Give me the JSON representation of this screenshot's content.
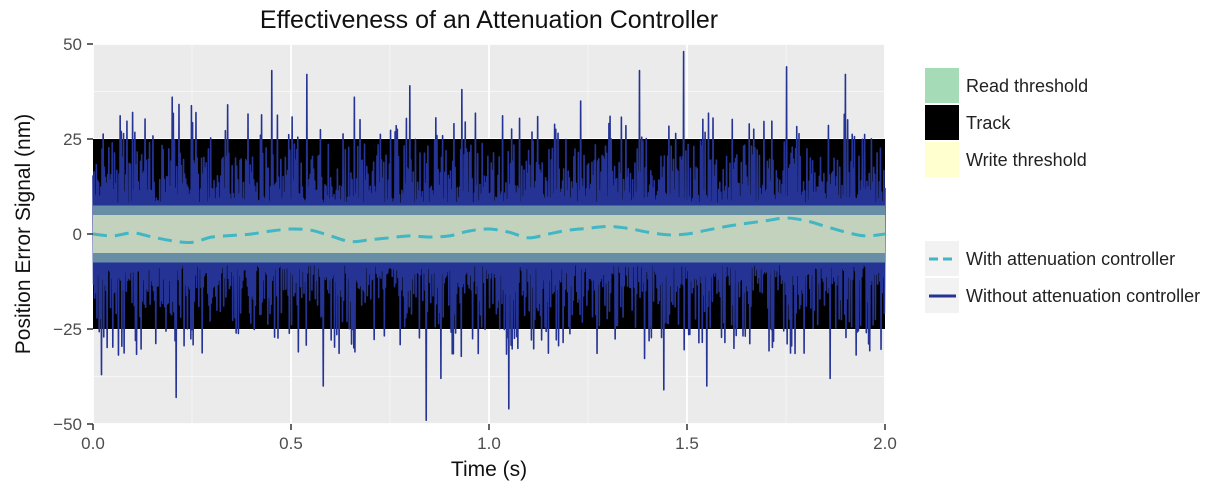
{
  "chart_data": {
    "type": "line",
    "title": "Effectiveness of an Attenuation Controller",
    "xlabel": "Time (s)",
    "ylabel": "Position Error Signal (nm)",
    "xlim": [
      0,
      2
    ],
    "ylim": [
      -50,
      50
    ],
    "x_ticks": [
      "0.0",
      "0.5",
      "1.0",
      "1.5",
      "2.0"
    ],
    "y_ticks": [
      "50",
      "25",
      "0",
      "-25",
      "-50"
    ],
    "grid": true,
    "legend_position": "right",
    "bands": [
      {
        "name": "Track",
        "ymin": -25,
        "ymax": 25,
        "color": "#000000"
      },
      {
        "name": "Read threshold",
        "ymin": -7.5,
        "ymax": 7.5,
        "color": "#a1d9b4"
      },
      {
        "name": "Write threshold",
        "ymin": -5,
        "ymax": 5,
        "color": "#ffffcc"
      }
    ],
    "fill_legend": [
      {
        "name": "Read threshold",
        "color": "#a1d9b4"
      },
      {
        "name": "Track",
        "color": "#000000"
      },
      {
        "name": "Write threshold",
        "color": "#ffffcc"
      }
    ],
    "line_legend": [
      {
        "name": "With attenuation controller",
        "color": "#41b6c4",
        "dash": true
      },
      {
        "name": "Without attenuation controller",
        "color": "#253494",
        "dash": false
      }
    ],
    "series": [
      {
        "name": "With attenuation controller",
        "color": "#41b6c4",
        "style": "dashed",
        "x": [
          0.0,
          0.05,
          0.1,
          0.15,
          0.2,
          0.25,
          0.3,
          0.35,
          0.4,
          0.45,
          0.5,
          0.55,
          0.6,
          0.65,
          0.7,
          0.75,
          0.8,
          0.85,
          0.9,
          0.95,
          1.0,
          1.05,
          1.1,
          1.15,
          1.2,
          1.25,
          1.3,
          1.35,
          1.4,
          1.45,
          1.5,
          1.55,
          1.6,
          1.65,
          1.7,
          1.75,
          1.8,
          1.85,
          1.9,
          1.95,
          2.0
        ],
        "y": [
          0.0,
          -0.5,
          0.3,
          -0.8,
          -1.8,
          -2.2,
          -0.8,
          -0.4,
          0.0,
          0.8,
          1.3,
          1.0,
          -0.5,
          -2.0,
          -1.5,
          -1.0,
          -0.5,
          -0.8,
          -0.5,
          0.8,
          1.3,
          0.5,
          -1.0,
          0.0,
          1.0,
          1.5,
          2.0,
          1.5,
          0.5,
          -0.2,
          0.0,
          1.0,
          2.0,
          2.8,
          3.5,
          4.2,
          3.5,
          2.0,
          0.5,
          -0.5,
          0.0
        ]
      },
      {
        "name": "Without attenuation controller",
        "color": "#253494",
        "style": "solid",
        "peaks": [
          {
            "x": 0.02,
            "y": -37
          },
          {
            "x": 0.07,
            "y": 27
          },
          {
            "x": 0.1,
            "y": 32
          },
          {
            "x": 0.21,
            "y": -43
          },
          {
            "x": 0.2,
            "y": 36
          },
          {
            "x": 0.34,
            "y": 34
          },
          {
            "x": 0.45,
            "y": 43
          },
          {
            "x": 0.54,
            "y": 42
          },
          {
            "x": 0.58,
            "y": -40
          },
          {
            "x": 0.66,
            "y": 36
          },
          {
            "x": 0.8,
            "y": 39
          },
          {
            "x": 0.84,
            "y": -49
          },
          {
            "x": 0.93,
            "y": 38
          },
          {
            "x": 1.05,
            "y": -46
          },
          {
            "x": 1.23,
            "y": 35
          },
          {
            "x": 1.38,
            "y": 43
          },
          {
            "x": 1.44,
            "y": -41
          },
          {
            "x": 1.49,
            "y": 48
          },
          {
            "x": 1.55,
            "y": -40
          },
          {
            "x": 1.75,
            "y": 44
          },
          {
            "x": 1.9,
            "y": 42
          },
          {
            "x": 1.86,
            "y": -38
          }
        ]
      }
    ]
  }
}
